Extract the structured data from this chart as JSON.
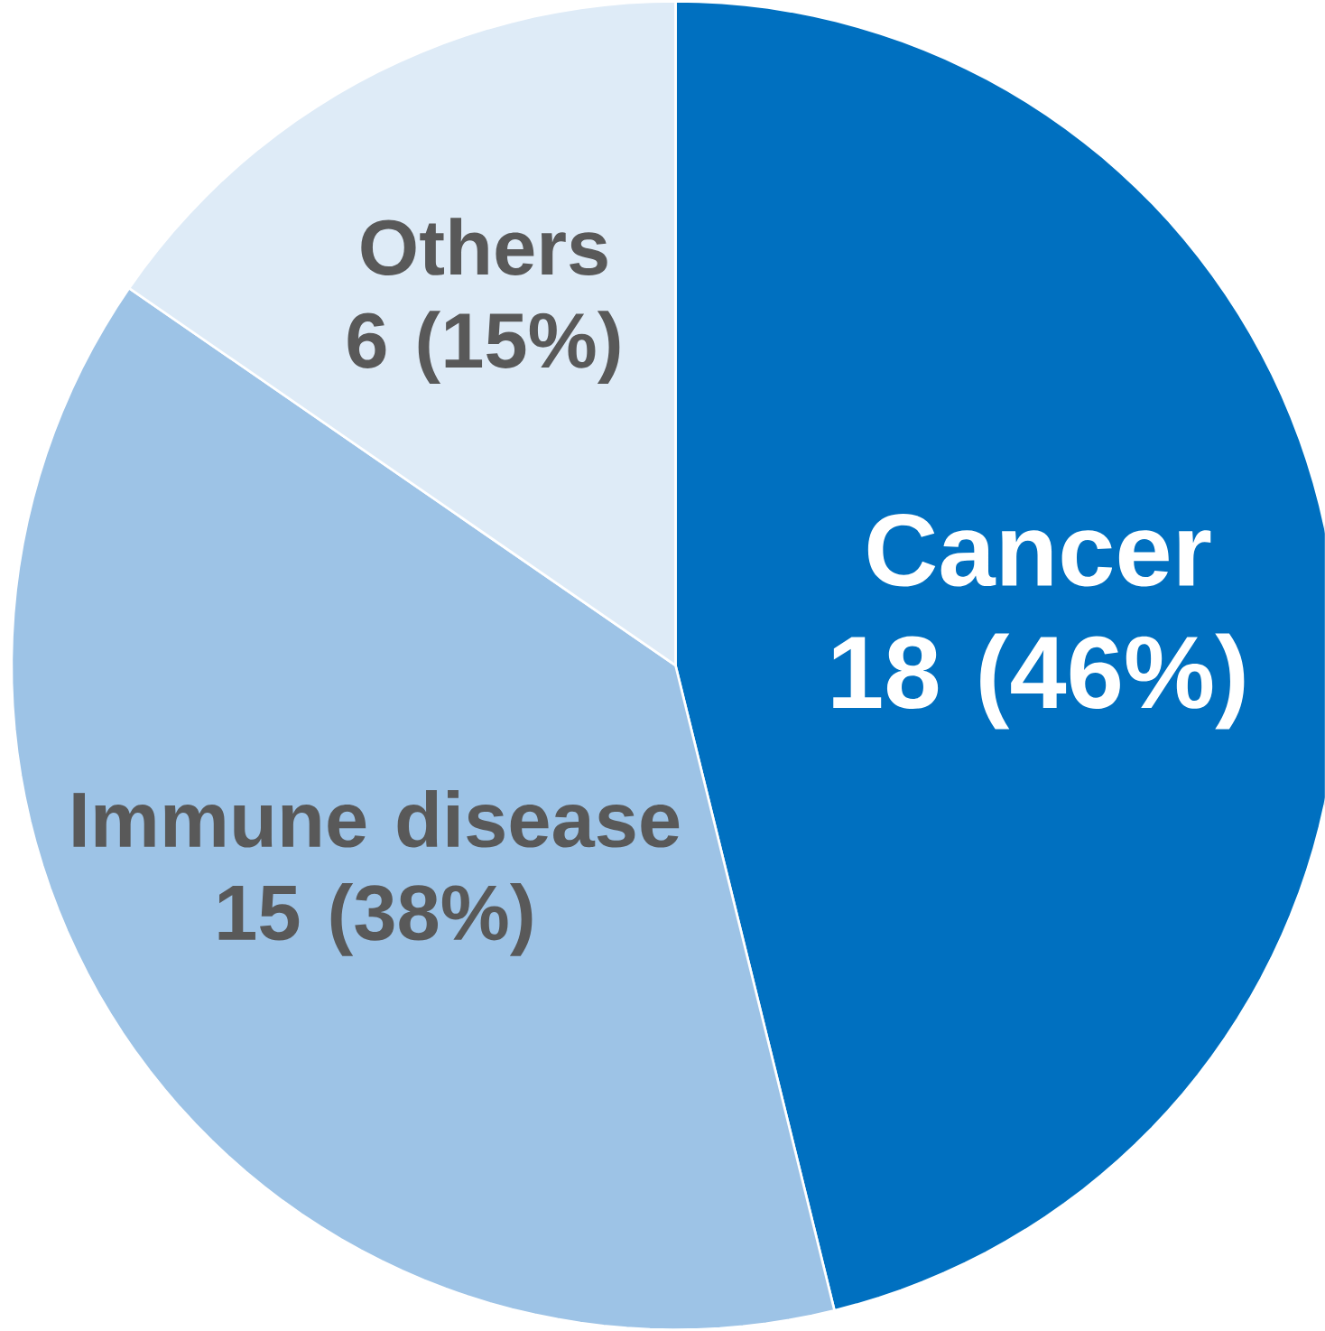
{
  "chart_data": {
    "type": "pie",
    "categories": [
      "Cancer",
      "Immune disease",
      "Others"
    ],
    "values": [
      18,
      15,
      6
    ],
    "value_labels": [
      "18 (46%)",
      "15 (38%)",
      "6 (15%)"
    ],
    "colors": [
      "#0070c0",
      "#9dc3e6",
      "#deebf7"
    ]
  }
}
